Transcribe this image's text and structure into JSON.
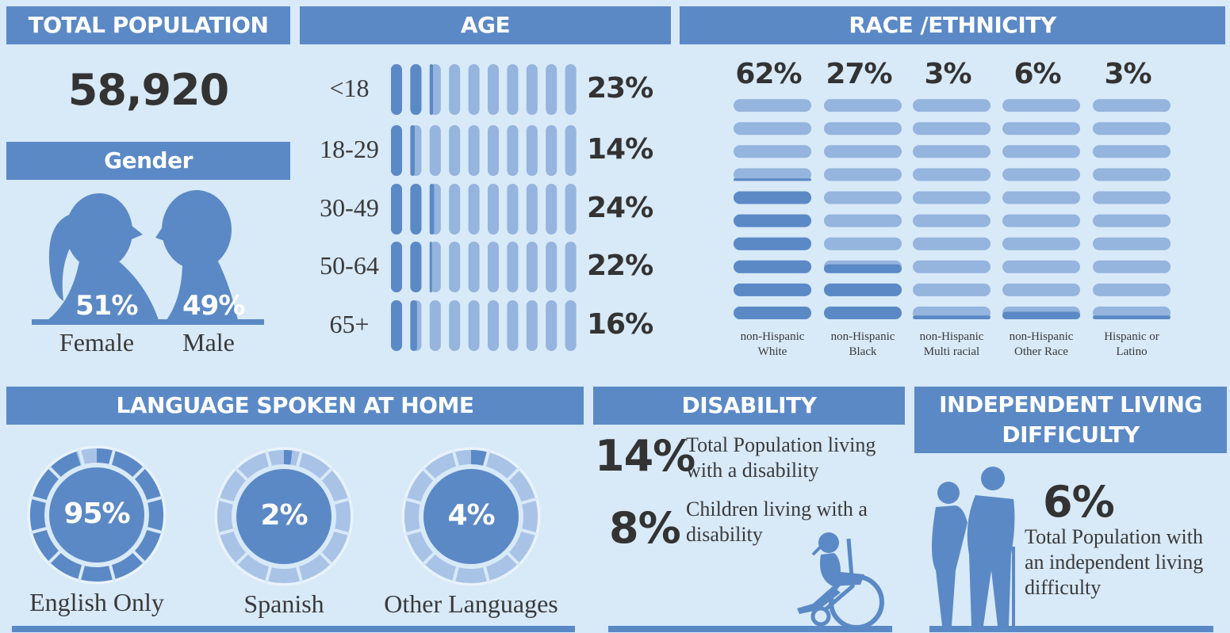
{
  "total_population": {
    "title": "TOTAL POPULATION",
    "value": "58,920"
  },
  "gender": {
    "title": "Gender",
    "categories": [
      "Female",
      "Male"
    ],
    "values": [
      51,
      49
    ],
    "value_labels": [
      "51%",
      "49%"
    ]
  },
  "age": {
    "title": "AGE",
    "categories": [
      "<18",
      "18-29",
      "30-49",
      "50-64",
      "65+"
    ],
    "values": [
      23,
      14,
      24,
      22,
      16
    ],
    "value_labels": [
      "23%",
      "14%",
      "24%",
      "22%",
      "16%"
    ]
  },
  "race": {
    "title": "RACE /ETHNICITY",
    "categories": [
      "non-Hispanic White",
      "non-Hispanic Black",
      "non-Hispanic Multi racial",
      "non-Hispanic Other Race",
      "Hispanic or Latino"
    ],
    "values": [
      62,
      27,
      3,
      6,
      3
    ],
    "value_labels": [
      "62%",
      "27%",
      "3%",
      "6%",
      "3%"
    ]
  },
  "language": {
    "title": "LANGUAGE SPOKEN AT HOME",
    "categories": [
      "English Only",
      "Spanish",
      "Other Languages"
    ],
    "values": [
      95,
      2,
      4
    ],
    "value_labels": [
      "95%",
      "2%",
      "4%"
    ]
  },
  "disability": {
    "title": "DISABILITY",
    "items": [
      {
        "value": 14,
        "value_label": "14%",
        "text": "Total Population living with a disability"
      },
      {
        "value": 8,
        "value_label": "8%",
        "text": "Children living with a disability"
      }
    ]
  },
  "independent_living": {
    "title": "INDEPENDENT LIVING DIFFICULTY",
    "value": 6,
    "value_label": "6%",
    "text": "Total Population with an independent living difficulty"
  }
}
